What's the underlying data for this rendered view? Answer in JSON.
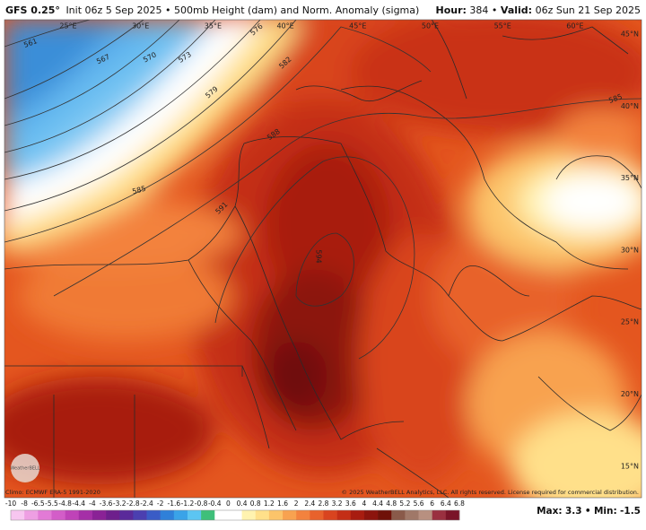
{
  "header": {
    "model": "GFS 0.25°",
    "description": "Init 06z 5 Sep 2025 • 500mb Height (dam) and Norm. Anomaly (sigma)",
    "hour_label": "Hour:",
    "hour": "384",
    "separator": "•",
    "valid_label": "Valid:",
    "valid": "06z Sun 21 Sep 2025"
  },
  "map": {
    "longitude_labels": [
      "25°E",
      "30°E",
      "35°E",
      "40°E",
      "45°E",
      "50°E",
      "55°E",
      "60°E"
    ],
    "latitude_labels": [
      "45°N",
      "40°N",
      "35°N",
      "30°N",
      "25°N",
      "20°N",
      "15°N"
    ],
    "contour_labels": [
      561,
      567,
      570,
      573,
      576,
      579,
      582,
      585,
      588,
      591,
      594,
      585
    ],
    "logo": "WeatherBELL"
  },
  "footer": {
    "climo": "Climo: ECMWF ERA-5 1991-2020",
    "copyright": "© 2025 WeatherBELL Analytics, LLC. All rights reserved. License required for commercial distribution.",
    "colorbar_labels": [
      -10,
      -8,
      -6.5,
      -5.5,
      -4.8,
      -4.4,
      -4,
      -3.6,
      -3.2,
      -2.8,
      -2.4,
      -2,
      -1.6,
      -1.2,
      -0.8,
      -0.4,
      0,
      0.4,
      0.8,
      1.2,
      1.6,
      2,
      2.4,
      2.8,
      3.2,
      3.6,
      4,
      4.4,
      4.8,
      5.2,
      5.6,
      6,
      6.4,
      6.8
    ],
    "colorbar_colors": [
      "#f7c6f0",
      "#ee9fe3",
      "#e27ad6",
      "#d35dc8",
      "#bf43b8",
      "#a52fa7",
      "#8a2296",
      "#6e1f8c",
      "#5a2a9a",
      "#4b3fb0",
      "#3a5cc6",
      "#2f80d9",
      "#3aa3e8",
      "#5cc5f2",
      "#3fbf7a",
      "#ffffff",
      "#ffffff",
      "#fff3b0",
      "#ffe08a",
      "#fcc46a",
      "#f8a250",
      "#f3823e",
      "#e8622c",
      "#d9441f",
      "#c42e16",
      "#a81c10",
      "#8c140d",
      "#6f1108",
      "#8a5a4a",
      "#a07868",
      "#b89080",
      "#9a3040",
      "#7a1428"
    ],
    "max_label": "Max:",
    "max": 3.3,
    "min_label": "Min:",
    "min": -1.5
  }
}
